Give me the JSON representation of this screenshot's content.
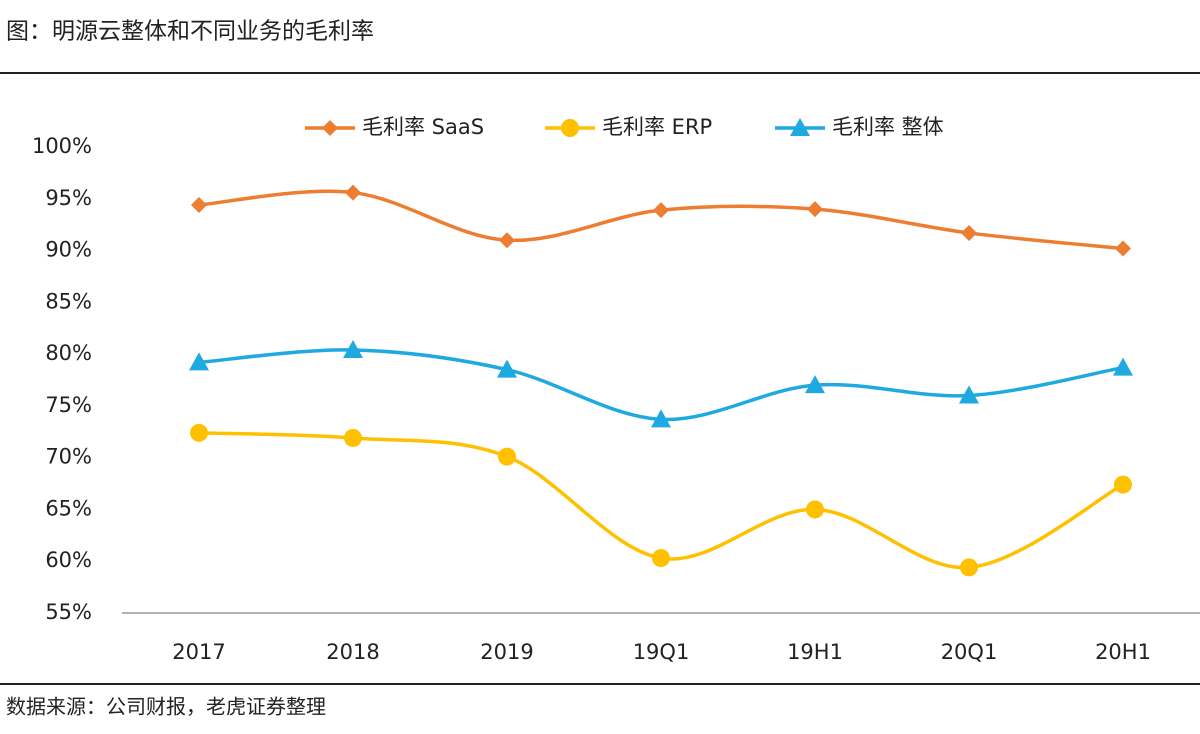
{
  "chart_data": {
    "type": "line",
    "title": "图：明源云整体和不同业务的毛利率",
    "source": "数据来源：公司财报，老虎证券整理",
    "categories": [
      "2017",
      "2018",
      "2019",
      "19Q1",
      "19H1",
      "20Q1",
      "20H1"
    ],
    "series": [
      {
        "name": "毛利率 SaaS",
        "color": "#ed7d31",
        "marker": "diamond",
        "values": [
          94.4,
          95.6,
          91.0,
          93.9,
          94.0,
          91.7,
          90.2
        ]
      },
      {
        "name": "毛利率 ERP",
        "color": "#ffc000",
        "marker": "circle",
        "values": [
          72.4,
          71.9,
          70.1,
          60.3,
          65.0,
          59.4,
          67.4
        ]
      },
      {
        "name": "毛利率 整体",
        "color": "#1fa9e1",
        "marker": "triangle",
        "values": [
          79.2,
          80.4,
          78.5,
          73.7,
          77.0,
          76.0,
          78.7
        ]
      }
    ],
    "ylim": [
      55,
      100
    ],
    "yticks": [
      {
        "value": 55,
        "label": "55%"
      },
      {
        "value": 60,
        "label": "60%"
      },
      {
        "value": 65,
        "label": "65%"
      },
      {
        "value": 70,
        "label": "70%"
      },
      {
        "value": 75,
        "label": "75%"
      },
      {
        "value": 80,
        "label": "80%"
      },
      {
        "value": 85,
        "label": "85%"
      },
      {
        "value": 90,
        "label": "90%"
      },
      {
        "value": 95,
        "label": "95%"
      },
      {
        "value": 100,
        "label": "100%"
      }
    ],
    "legend": "top",
    "smooth": true
  }
}
